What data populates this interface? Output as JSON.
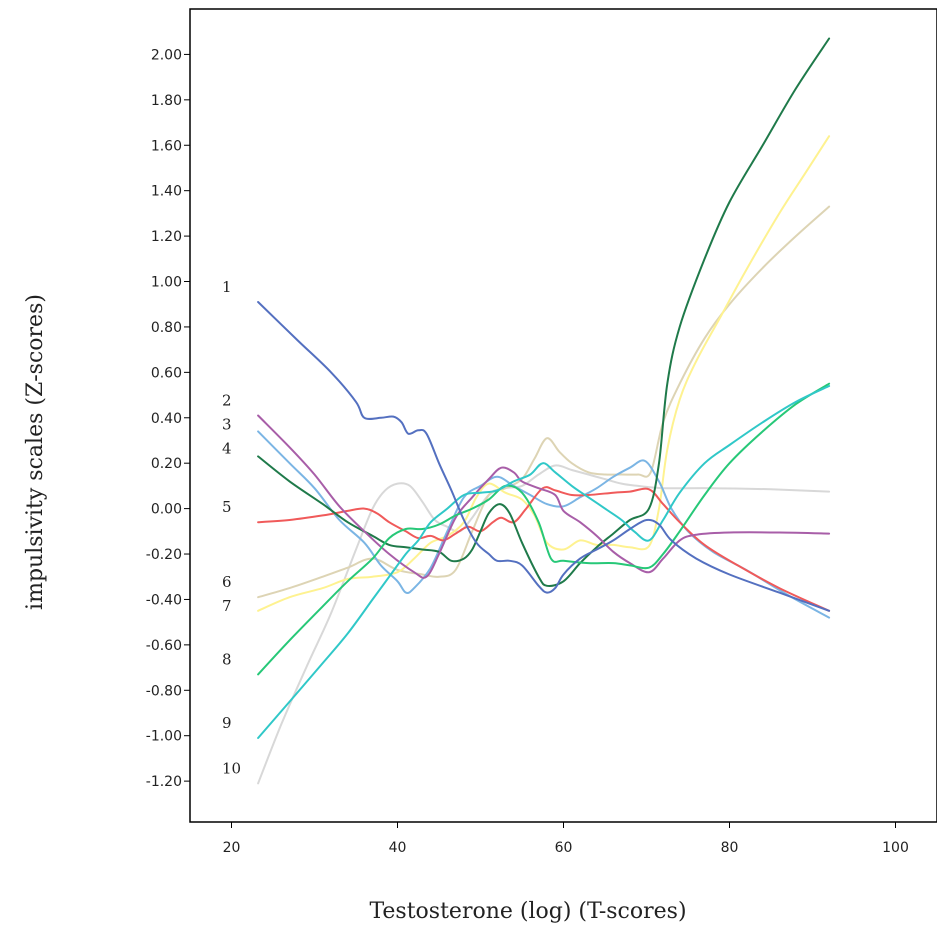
{
  "chart_data": {
    "type": "line",
    "title": "",
    "xlabel": "Testosterone (log) (T-scores)",
    "ylabel": "impulsivity scales (Z-scores)",
    "xlim": [
      15,
      105
    ],
    "ylim": [
      -1.38,
      2.2
    ],
    "xticks": [
      20,
      40,
      60,
      80,
      100
    ],
    "yticks": [
      2.0,
      1.8,
      1.6,
      1.4,
      1.2,
      1.0,
      0.8,
      0.6,
      0.4,
      0.2,
      0.0,
      -0.2,
      -0.4,
      -0.6,
      -0.8,
      -1.0,
      -1.2
    ],
    "ytick_labels": [
      "2.00",
      "1.80",
      "1.60",
      "1.40",
      "1.20",
      "1.00",
      "0.80",
      "0.60",
      "0.40",
      "0.20",
      "0.00",
      "-0.20",
      "-0.40",
      "-0.60",
      "-0.80",
      "-1.00",
      "-1.20"
    ],
    "grid": false,
    "legend": "none",
    "series": [
      {
        "name": "1",
        "color": "#5470c0",
        "points": [
          [
            23.2,
            0.91
          ],
          [
            28,
            0.74
          ],
          [
            32,
            0.6
          ],
          [
            35,
            0.47
          ],
          [
            36,
            0.4
          ],
          [
            38,
            0.4
          ],
          [
            39.5,
            0.405
          ],
          [
            40.5,
            0.38
          ],
          [
            41.3,
            0.33
          ],
          [
            42.5,
            0.345
          ],
          [
            43.5,
            0.33
          ],
          [
            45,
            0.2
          ],
          [
            46.5,
            0.08
          ],
          [
            48,
            -0.05
          ],
          [
            49.5,
            -0.15
          ],
          [
            51,
            -0.2
          ],
          [
            52,
            -0.23
          ],
          [
            53.5,
            -0.23
          ],
          [
            55,
            -0.25
          ],
          [
            57,
            -0.34
          ],
          [
            58,
            -0.37
          ],
          [
            59,
            -0.35
          ],
          [
            60,
            -0.29
          ],
          [
            62,
            -0.22
          ],
          [
            64,
            -0.18
          ],
          [
            66,
            -0.14
          ],
          [
            68,
            -0.09
          ],
          [
            70,
            -0.05
          ],
          [
            71.5,
            -0.07
          ],
          [
            73,
            -0.14
          ],
          [
            76,
            -0.22
          ],
          [
            80,
            -0.29
          ],
          [
            86,
            -0.37
          ],
          [
            92,
            -0.45
          ]
        ]
      },
      {
        "name": "2",
        "color": "#a85ea8",
        "points": [
          [
            23.2,
            0.41
          ],
          [
            27,
            0.27
          ],
          [
            30,
            0.15
          ],
          [
            33,
            0.01
          ],
          [
            36,
            -0.1
          ],
          [
            39,
            -0.2
          ],
          [
            42,
            -0.28
          ],
          [
            43.5,
            -0.3
          ],
          [
            45,
            -0.2
          ],
          [
            47,
            -0.04
          ],
          [
            49,
            0.05
          ],
          [
            51,
            0.13
          ],
          [
            52.5,
            0.18
          ],
          [
            54,
            0.16
          ],
          [
            55,
            0.12
          ],
          [
            57,
            0.09
          ],
          [
            59,
            0.06
          ],
          [
            60,
            -0.01
          ],
          [
            62,
            -0.06
          ],
          [
            64,
            -0.12
          ],
          [
            66,
            -0.19
          ],
          [
            68,
            -0.24
          ],
          [
            70.3,
            -0.28
          ],
          [
            72,
            -0.22
          ],
          [
            74,
            -0.14
          ],
          [
            76,
            -0.115
          ],
          [
            80,
            -0.105
          ],
          [
            86,
            -0.105
          ],
          [
            92,
            -0.11
          ]
        ]
      },
      {
        "name": "3",
        "color": "#7bb5e4",
        "points": [
          [
            23.2,
            0.34
          ],
          [
            27,
            0.2
          ],
          [
            30,
            0.09
          ],
          [
            33,
            -0.05
          ],
          [
            36,
            -0.15
          ],
          [
            38,
            -0.25
          ],
          [
            40,
            -0.32
          ],
          [
            41,
            -0.37
          ],
          [
            42,
            -0.35
          ],
          [
            44,
            -0.26
          ],
          [
            46,
            -0.1
          ],
          [
            48,
            0.05
          ],
          [
            50,
            0.1
          ],
          [
            52,
            0.14
          ],
          [
            54,
            0.1
          ],
          [
            56,
            0.06
          ],
          [
            58,
            0.02
          ],
          [
            60,
            0.01
          ],
          [
            62,
            0.05
          ],
          [
            64,
            0.09
          ],
          [
            66,
            0.14
          ],
          [
            68,
            0.18
          ],
          [
            69.8,
            0.21
          ],
          [
            71.5,
            0.12
          ],
          [
            73,
            0.0
          ],
          [
            75,
            -0.1
          ],
          [
            78,
            -0.19
          ],
          [
            82,
            -0.27
          ],
          [
            87,
            -0.38
          ],
          [
            92,
            -0.48
          ]
        ]
      },
      {
        "name": "4",
        "color": "#1f7a4a",
        "points": [
          [
            23.2,
            0.23
          ],
          [
            27,
            0.12
          ],
          [
            31,
            0.02
          ],
          [
            34,
            -0.06
          ],
          [
            37,
            -0.12
          ],
          [
            39,
            -0.16
          ],
          [
            41,
            -0.17
          ],
          [
            43,
            -0.18
          ],
          [
            45,
            -0.19
          ],
          [
            46.5,
            -0.23
          ],
          [
            48,
            -0.22
          ],
          [
            49,
            -0.18
          ],
          [
            50,
            -0.1
          ],
          [
            51,
            -0.02
          ],
          [
            52.3,
            0.02
          ],
          [
            53.5,
            -0.02
          ],
          [
            55,
            -0.15
          ],
          [
            57,
            -0.3
          ],
          [
            58,
            -0.34
          ],
          [
            60,
            -0.32
          ],
          [
            62,
            -0.24
          ],
          [
            64,
            -0.17
          ],
          [
            66,
            -0.11
          ],
          [
            68,
            -0.05
          ],
          [
            70.3,
            0.0
          ],
          [
            71.5,
            0.2
          ],
          [
            72.5,
            0.55
          ],
          [
            74,
            0.8
          ],
          [
            77,
            1.1
          ],
          [
            80,
            1.35
          ],
          [
            84,
            1.6
          ],
          [
            88,
            1.85
          ],
          [
            92,
            2.07
          ]
        ]
      },
      {
        "name": "5",
        "color": "#f05a5a",
        "points": [
          [
            23.2,
            -0.06
          ],
          [
            27,
            -0.05
          ],
          [
            31,
            -0.03
          ],
          [
            34,
            -0.01
          ],
          [
            36,
            0.0
          ],
          [
            37.5,
            -0.02
          ],
          [
            39,
            -0.06
          ],
          [
            41,
            -0.1
          ],
          [
            42.5,
            -0.13
          ],
          [
            44,
            -0.12
          ],
          [
            45.5,
            -0.14
          ],
          [
            47,
            -0.11
          ],
          [
            48.5,
            -0.08
          ],
          [
            50,
            -0.1
          ],
          [
            51.5,
            -0.06
          ],
          [
            52.5,
            -0.04
          ],
          [
            54,
            -0.06
          ],
          [
            55.5,
            0.0
          ],
          [
            57.5,
            0.09
          ],
          [
            59,
            0.08
          ],
          [
            61,
            0.06
          ],
          [
            63,
            0.06
          ],
          [
            66,
            0.07
          ],
          [
            68,
            0.075
          ],
          [
            70.3,
            0.085
          ],
          [
            72,
            0.02
          ],
          [
            74,
            -0.06
          ],
          [
            77,
            -0.16
          ],
          [
            81,
            -0.25
          ],
          [
            86,
            -0.35
          ],
          [
            92,
            -0.45
          ]
        ]
      },
      {
        "name": "6",
        "color": "#ddd4b4",
        "points": [
          [
            23.2,
            -0.39
          ],
          [
            27,
            -0.35
          ],
          [
            31,
            -0.3
          ],
          [
            34,
            -0.26
          ],
          [
            37,
            -0.22
          ],
          [
            40,
            -0.27
          ],
          [
            43,
            -0.29
          ],
          [
            45,
            -0.3
          ],
          [
            47,
            -0.27
          ],
          [
            49,
            -0.1
          ],
          [
            51,
            0.06
          ],
          [
            53,
            0.09
          ],
          [
            55,
            0.13
          ],
          [
            56.5,
            0.22
          ],
          [
            58,
            0.31
          ],
          [
            59.5,
            0.25
          ],
          [
            61,
            0.2
          ],
          [
            63,
            0.16
          ],
          [
            65,
            0.15
          ],
          [
            67,
            0.15
          ],
          [
            69,
            0.15
          ],
          [
            70.5,
            0.16
          ],
          [
            72,
            0.38
          ],
          [
            74,
            0.55
          ],
          [
            77,
            0.75
          ],
          [
            80,
            0.9
          ],
          [
            84,
            1.06
          ],
          [
            88,
            1.2
          ],
          [
            92,
            1.33
          ]
        ]
      },
      {
        "name": "7",
        "color": "#fef290",
        "points": [
          [
            23.2,
            -0.45
          ],
          [
            27,
            -0.39
          ],
          [
            31,
            -0.35
          ],
          [
            34,
            -0.31
          ],
          [
            37,
            -0.3
          ],
          [
            40,
            -0.28
          ],
          [
            42,
            -0.22
          ],
          [
            44,
            -0.15
          ],
          [
            46,
            -0.12
          ],
          [
            48,
            -0.06
          ],
          [
            49.5,
            0.05
          ],
          [
            51,
            0.11
          ],
          [
            53,
            0.07
          ],
          [
            55,
            0.04
          ],
          [
            56.5,
            -0.03
          ],
          [
            58,
            -0.15
          ],
          [
            60,
            -0.18
          ],
          [
            62,
            -0.14
          ],
          [
            64,
            -0.16
          ],
          [
            66,
            -0.16
          ],
          [
            68,
            -0.17
          ],
          [
            70.3,
            -0.165
          ],
          [
            71.5,
            0.0
          ],
          [
            72.5,
            0.26
          ],
          [
            74,
            0.48
          ],
          [
            76,
            0.65
          ],
          [
            79,
            0.85
          ],
          [
            82,
            1.05
          ],
          [
            86,
            1.3
          ],
          [
            89,
            1.47
          ],
          [
            92,
            1.64
          ]
        ]
      },
      {
        "name": "8",
        "color": "#27c878",
        "points": [
          [
            23.2,
            -0.73
          ],
          [
            27,
            -0.58
          ],
          [
            31,
            -0.43
          ],
          [
            34,
            -0.32
          ],
          [
            37,
            -0.22
          ],
          [
            39,
            -0.13
          ],
          [
            41,
            -0.09
          ],
          [
            43,
            -0.09
          ],
          [
            45,
            -0.07
          ],
          [
            47,
            -0.03
          ],
          [
            49,
            0.0
          ],
          [
            51,
            0.04
          ],
          [
            53,
            0.1
          ],
          [
            55,
            0.07
          ],
          [
            57,
            -0.06
          ],
          [
            58.5,
            -0.22
          ],
          [
            60,
            -0.23
          ],
          [
            63,
            -0.24
          ],
          [
            66,
            -0.24
          ],
          [
            68,
            -0.25
          ],
          [
            70.3,
            -0.26
          ],
          [
            72,
            -0.2
          ],
          [
            74,
            -0.1
          ],
          [
            77,
            0.06
          ],
          [
            80,
            0.2
          ],
          [
            84,
            0.34
          ],
          [
            88,
            0.46
          ],
          [
            92,
            0.55
          ]
        ]
      },
      {
        "name": "9",
        "color": "#30c8c8",
        "points": [
          [
            23.2,
            -1.01
          ],
          [
            27,
            -0.85
          ],
          [
            31,
            -0.68
          ],
          [
            34,
            -0.55
          ],
          [
            37,
            -0.4
          ],
          [
            39,
            -0.3
          ],
          [
            41,
            -0.2
          ],
          [
            42.5,
            -0.14
          ],
          [
            44,
            -0.06
          ],
          [
            46,
            0.0
          ],
          [
            48,
            0.06
          ],
          [
            50,
            0.07
          ],
          [
            52,
            0.08
          ],
          [
            54,
            0.12
          ],
          [
            56,
            0.15
          ],
          [
            57.5,
            0.2
          ],
          [
            59,
            0.16
          ],
          [
            61,
            0.1
          ],
          [
            63,
            0.05
          ],
          [
            65,
            0.0
          ],
          [
            67,
            -0.05
          ],
          [
            68.5,
            -0.1
          ],
          [
            70.3,
            -0.14
          ],
          [
            72,
            -0.05
          ],
          [
            74,
            0.07
          ],
          [
            77,
            0.2
          ],
          [
            80,
            0.28
          ],
          [
            84,
            0.38
          ],
          [
            88,
            0.47
          ],
          [
            92,
            0.54
          ]
        ]
      },
      {
        "name": "10",
        "color": "#d8d8d8",
        "points": [
          [
            23.2,
            -1.21
          ],
          [
            26,
            -0.95
          ],
          [
            29,
            -0.7
          ],
          [
            32,
            -0.46
          ],
          [
            35,
            -0.18
          ],
          [
            37,
            0.0
          ],
          [
            38.5,
            0.08
          ],
          [
            40,
            0.11
          ],
          [
            41.5,
            0.1
          ],
          [
            43,
            0.03
          ],
          [
            44.5,
            -0.05
          ],
          [
            46,
            -0.08
          ],
          [
            47.5,
            -0.1
          ],
          [
            49,
            -0.04
          ],
          [
            51,
            0.06
          ],
          [
            53,
            0.09
          ],
          [
            55,
            0.1
          ],
          [
            57,
            0.15
          ],
          [
            59,
            0.19
          ],
          [
            61,
            0.17
          ],
          [
            63,
            0.15
          ],
          [
            65,
            0.13
          ],
          [
            67,
            0.11
          ],
          [
            69,
            0.1
          ],
          [
            72,
            0.09
          ],
          [
            78,
            0.09
          ],
          [
            85,
            0.085
          ],
          [
            92,
            0.075
          ]
        ]
      }
    ]
  }
}
